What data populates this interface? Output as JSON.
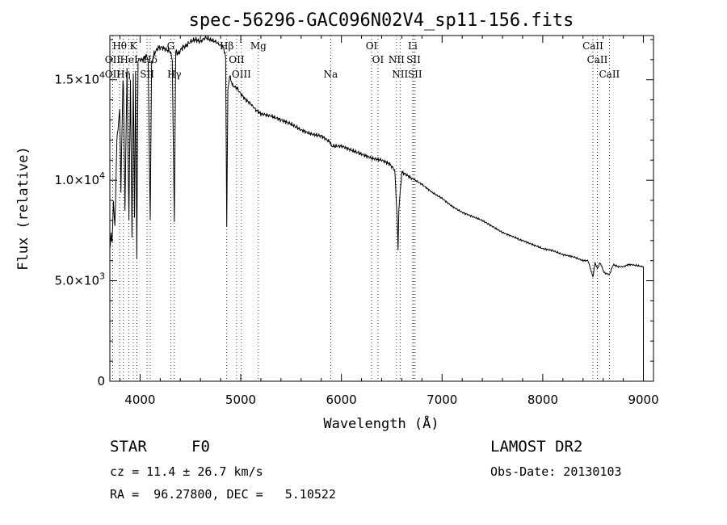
{
  "chart_data": {
    "type": "line",
    "title": "spec-56296-GAC096N02V4_sp11-156.fits",
    "xlabel": "Wavelength (Å)",
    "ylabel": "Flux (relative)",
    "xlim": [
      3700,
      9100
    ],
    "ylim": [
      0,
      17200
    ],
    "x_ticks": [
      {
        "value": 4000,
        "label": "4000"
      },
      {
        "value": 5000,
        "label": "5000"
      },
      {
        "value": 6000,
        "label": "6000"
      },
      {
        "value": 7000,
        "label": "7000"
      },
      {
        "value": 8000,
        "label": "8000"
      },
      {
        "value": 9000,
        "label": "9000"
      }
    ],
    "y_ticks": [
      {
        "value": 0,
        "mant": "0",
        "exp": ""
      },
      {
        "value": 5000,
        "mant": "5.0×10",
        "exp": "3"
      },
      {
        "value": 10000,
        "mant": "1.0×10",
        "exp": "4"
      },
      {
        "value": 15000,
        "mant": "1.5×10",
        "exp": "4"
      }
    ],
    "series": [
      {
        "color": "#000000",
        "x": [
          3700,
          3712,
          3722,
          3735,
          3750,
          3770,
          3798,
          3810,
          3830,
          3835,
          3850,
          3870,
          3889,
          3905,
          3920,
          3933,
          3945,
          3955,
          3968,
          3980,
          4000,
          4030,
          4060,
          4080,
          4101,
          4115,
          4140,
          4180,
          4220,
          4260,
          4300,
          4320,
          4340,
          4355,
          4380,
          4420,
          4460,
          4500,
          4550,
          4600,
          4650,
          4700,
          4750,
          4800,
          4830,
          4850,
          4861,
          4872,
          4890,
          4920,
          4960,
          5000,
          5050,
          5100,
          5150,
          5200,
          5300,
          5400,
          5500,
          5600,
          5700,
          5800,
          5889,
          5900,
          6000,
          6100,
          6200,
          6300,
          6400,
          6480,
          6530,
          6555,
          6563,
          6570,
          6600,
          6700,
          6800,
          6900,
          7000,
          7100,
          7200,
          7300,
          7400,
          7500,
          7600,
          7700,
          7750,
          7760,
          7800,
          7900,
          8000,
          8100,
          8200,
          8300,
          8400,
          8450,
          8498,
          8520,
          8542,
          8570,
          8610,
          8662,
          8700,
          8750,
          8800,
          8850,
          8880,
          9000,
          9000
        ],
        "y": [
          6500,
          7400,
          6800,
          9000,
          7600,
          12000,
          13500,
          9500,
          15000,
          14800,
          8500,
          15500,
          8000,
          15000,
          7000,
          15300,
          8000,
          15500,
          6000,
          16000,
          16000,
          16000,
          16200,
          16000,
          8000,
          15800,
          16300,
          16600,
          16600,
          16500,
          16400,
          16000,
          8000,
          16400,
          16300,
          16600,
          16700,
          16900,
          17000,
          16900,
          17100,
          17000,
          16900,
          16700,
          16600,
          16100,
          7800,
          14500,
          15200,
          14700,
          14600,
          14300,
          14000,
          13800,
          13500,
          13300,
          13200,
          13000,
          12800,
          12500,
          12300,
          12200,
          11900,
          11700,
          11700,
          11500,
          11300,
          11100,
          11000,
          10800,
          10500,
          8000,
          6500,
          8500,
          10400,
          10100,
          9800,
          9400,
          9100,
          8700,
          8400,
          8200,
          8000,
          7700,
          7400,
          7200,
          7100,
          7050,
          7000,
          6800,
          6600,
          6500,
          6300,
          6200,
          6000,
          6000,
          5200,
          5900,
          5600,
          5900,
          5400,
          5300,
          5800,
          5700,
          5700,
          5800,
          5800,
          5700,
          0
        ]
      }
    ],
    "line_labels": [
      {
        "name": "Hθ",
        "x": 3798,
        "row": 0
      },
      {
        "name": "K",
        "x": 3933,
        "row": 0
      },
      {
        "name": "G",
        "x": 4305,
        "row": 0
      },
      {
        "name": "Hβ",
        "x": 4861,
        "row": 0
      },
      {
        "name": "Mg",
        "x": 5175,
        "row": 0
      },
      {
        "name": "OI",
        "x": 6300,
        "row": 0
      },
      {
        "name": "Li",
        "x": 6708,
        "row": 0
      },
      {
        "name": "CaII",
        "x": 8498,
        "row": 0
      },
      {
        "name": "OII",
        "x": 3727,
        "row": 1
      },
      {
        "name": "HeI",
        "x": 3889,
        "row": 1
      },
      {
        "name": "Hδ",
        "x": 4101,
        "row": 1
      },
      {
        "name": "OII",
        "x": 4959,
        "row": 1
      },
      {
        "name": "OI",
        "x": 6363,
        "row": 1
      },
      {
        "name": "NII",
        "x": 6548,
        "row": 1
      },
      {
        "name": "SII",
        "x": 6717,
        "row": 1
      },
      {
        "name": "CaII",
        "x": 8542,
        "row": 1
      },
      {
        "name": "OII",
        "x": 3727,
        "row": 2
      },
      {
        "name": "Hη",
        "x": 3835,
        "row": 2
      },
      {
        "name": "SII",
        "x": 4070,
        "row": 2
      },
      {
        "name": "Hγ",
        "x": 4340,
        "row": 2
      },
      {
        "name": "OIII",
        "x": 5007,
        "row": 2
      },
      {
        "name": "Na",
        "x": 5893,
        "row": 2
      },
      {
        "name": "NII",
        "x": 6583,
        "row": 2
      },
      {
        "name": "SII",
        "x": 6731,
        "row": 2
      },
      {
        "name": "CaII",
        "x": 8662,
        "row": 2
      }
    ],
    "line_markers": [
      3727,
      3798,
      3835,
      3889,
      3933,
      3968,
      4070,
      4101,
      4305,
      4340,
      4861,
      4959,
      5007,
      5175,
      5893,
      6300,
      6363,
      6548,
      6583,
      6708,
      6717,
      6731,
      8498,
      8542,
      8662
    ],
    "grid": false,
    "legend": "none"
  },
  "info": {
    "object_class": "STAR",
    "subclass": "F0",
    "survey": "LAMOST DR2",
    "cz": "cz = 11.4 ± 26.7 km/s",
    "obs_date": "Obs-Date: 20130103",
    "radec": "RA =  96.27800, DEC =   5.10522"
  }
}
